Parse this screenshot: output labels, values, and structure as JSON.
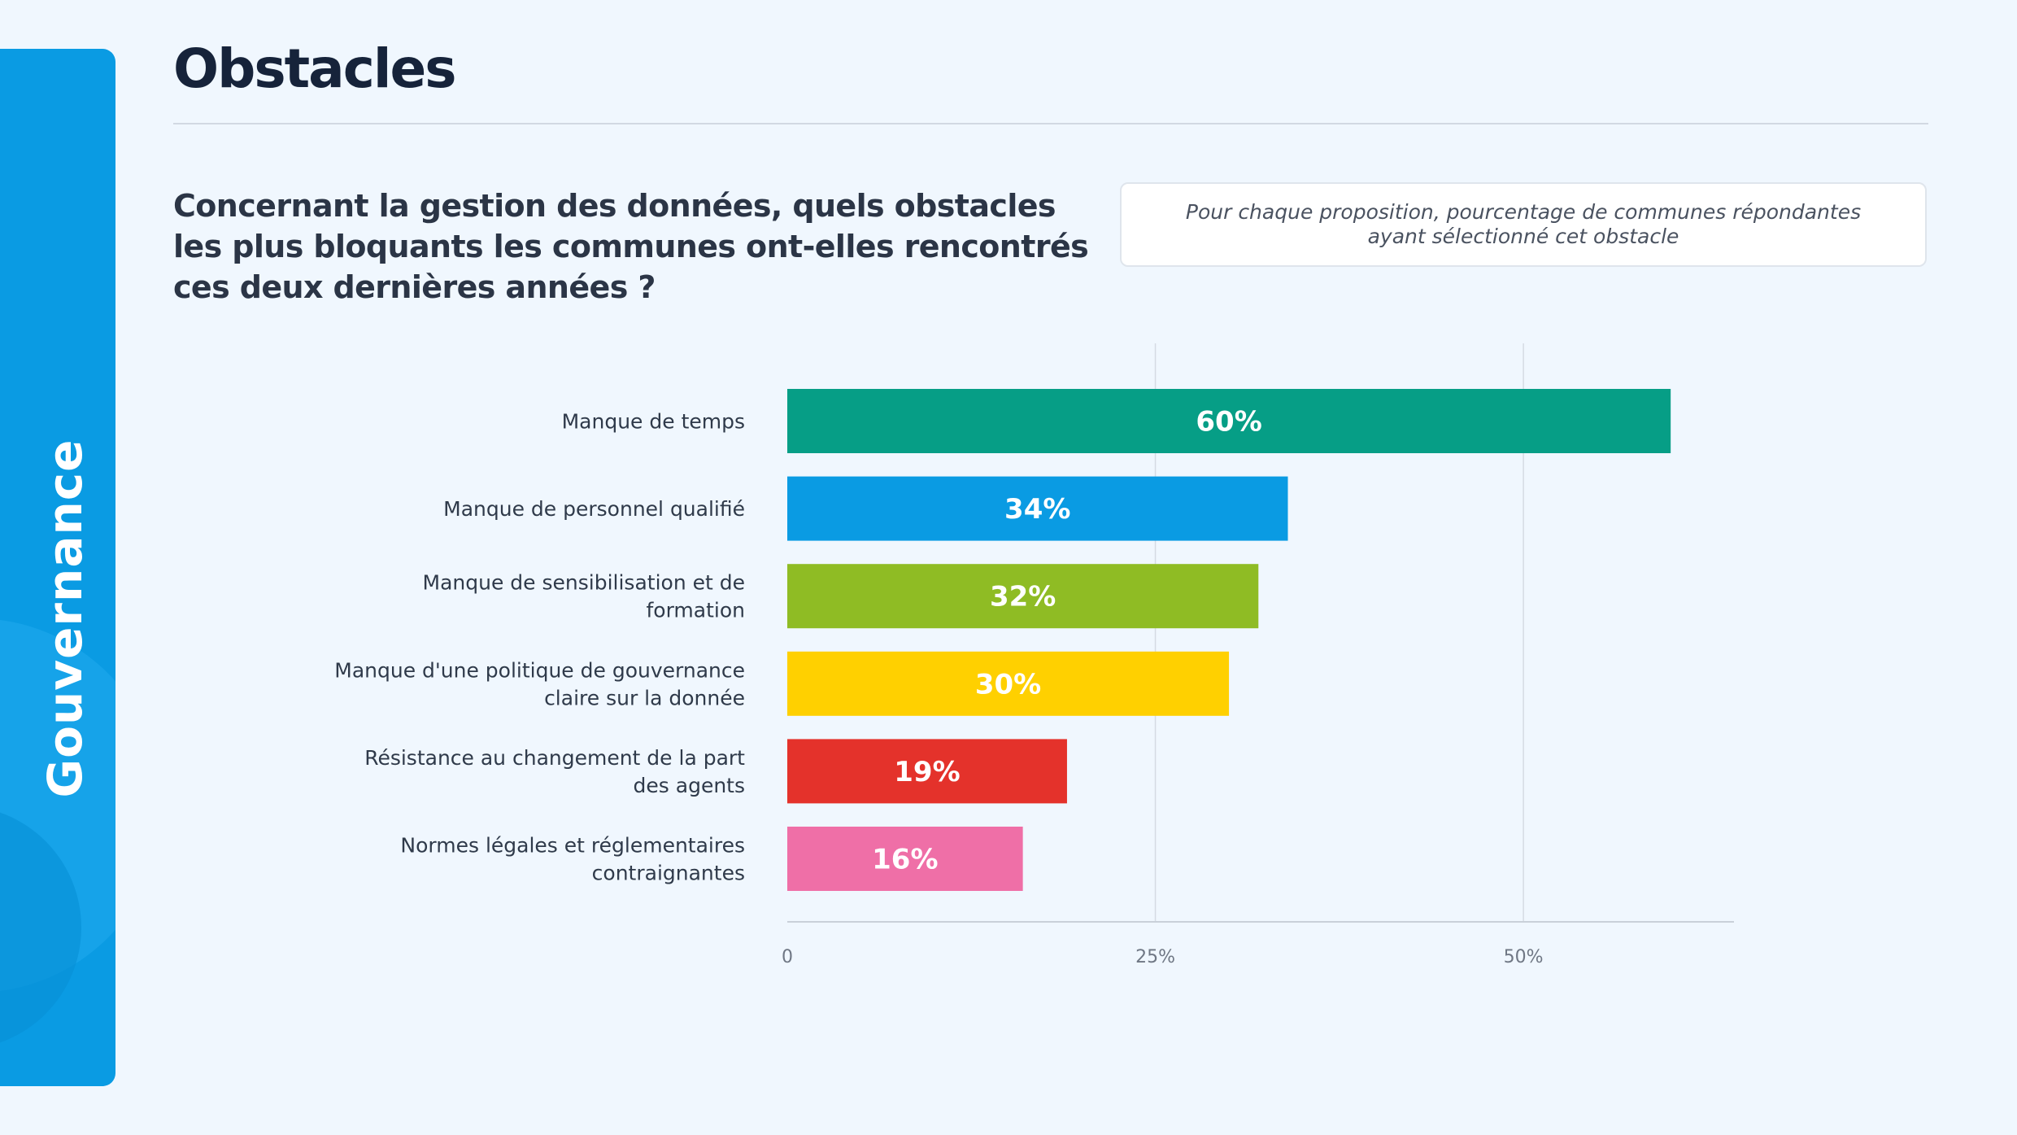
{
  "sidebar": {
    "label": "Gouvernance"
  },
  "header": {
    "title": "Obstacles"
  },
  "question": "Concernant la gestion des données, quels obstacles les plus bloquants les communes ont-elles rencontrés ces deux dernières années ?",
  "note": "Pour chaque proposition, pourcentage de communes répondantes ayant sélectionné cet obstacle",
  "chart_data": {
    "type": "bar",
    "orientation": "horizontal",
    "categories": [
      [
        "Manque de temps"
      ],
      [
        "Manque de personnel qualifié"
      ],
      [
        "Manque de sensibilisation et de",
        "formation"
      ],
      [
        "Manque d'une politique de gouvernance",
        "claire sur la donnée"
      ],
      [
        "Résistance au changement de la part",
        "des agents"
      ],
      [
        "Normes légales et réglementaires",
        "contraignantes"
      ]
    ],
    "values": [
      60,
      34,
      32,
      30,
      19,
      16
    ],
    "value_labels": [
      "60%",
      "34%",
      "32%",
      "30%",
      "19%",
      "16%"
    ],
    "colors": [
      "#069e86",
      "#0a9be3",
      "#8fbc24",
      "#ffd000",
      "#e4322b",
      "#ef6fa7"
    ],
    "xlim": [
      0,
      64.3
    ],
    "xticks": [
      0,
      25,
      50
    ],
    "xtick_labels": [
      "0",
      "25%",
      "50%"
    ],
    "grid": true
  }
}
